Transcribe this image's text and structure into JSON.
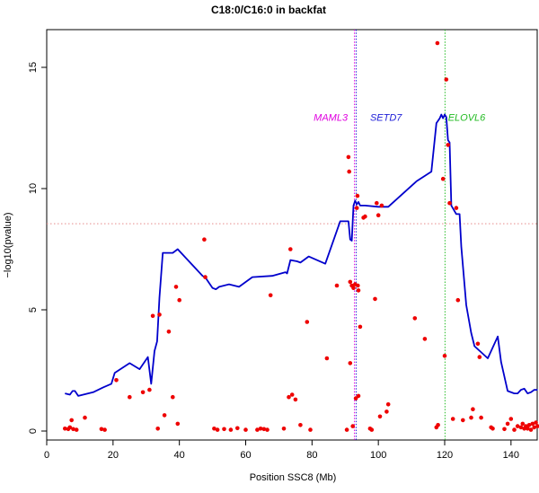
{
  "chart_data": {
    "type": "scatter",
    "title": "C18:0/C16:0 in backfat",
    "xlabel": "Position SSC8 (Mb)",
    "ylabel": "−log10(pvalue)",
    "xlim": [
      0,
      148
    ],
    "ylim": [
      0,
      16.5
    ],
    "x_ticks": [
      0,
      20,
      40,
      60,
      80,
      100,
      120,
      140
    ],
    "y_ticks": [
      0,
      5,
      10,
      15
    ],
    "grid": false,
    "threshold": {
      "y": 8.55,
      "color": "#e88a8a",
      "style": "dotted"
    },
    "genes": [
      {
        "name": "MAML3",
        "x": 92.8,
        "color": "#e000e0",
        "label_x": 80.5
      },
      {
        "name": "SETD7",
        "x": 93.3,
        "color": "#2020d8",
        "label_x": 97.5
      },
      {
        "name": "ELOVL6",
        "x": 120.1,
        "color": "#22bb22",
        "label_x": 121
      }
    ],
    "gene_label_y": 12.8,
    "series": [
      {
        "kind": "line",
        "color": "#0000cc",
        "points": [
          [
            5.5,
            1.55
          ],
          [
            7,
            1.5
          ],
          [
            7.8,
            1.65
          ],
          [
            8.5,
            1.65
          ],
          [
            9.5,
            1.45
          ],
          [
            11,
            1.5
          ],
          [
            14,
            1.6
          ],
          [
            17,
            1.8
          ],
          [
            19.5,
            1.95
          ],
          [
            20.5,
            2.4
          ],
          [
            25,
            2.8
          ],
          [
            28,
            2.55
          ],
          [
            30.5,
            3.05
          ],
          [
            31.5,
            1.95
          ],
          [
            32.5,
            3.3
          ],
          [
            33.3,
            3.7
          ],
          [
            34,
            5.5
          ],
          [
            35,
            7.35
          ],
          [
            38,
            7.35
          ],
          [
            39.5,
            7.5
          ],
          [
            47,
            6.4
          ],
          [
            48,
            6.3
          ],
          [
            50,
            5.9
          ],
          [
            51,
            5.85
          ],
          [
            52,
            5.95
          ],
          [
            55,
            6.05
          ],
          [
            58,
            5.95
          ],
          [
            62,
            6.35
          ],
          [
            68,
            6.4
          ],
          [
            72,
            6.55
          ],
          [
            72.5,
            6.5
          ],
          [
            73.5,
            7.05
          ],
          [
            75.5,
            7.0
          ],
          [
            76.5,
            6.95
          ],
          [
            79,
            7.2
          ],
          [
            84,
            6.9
          ],
          [
            88.5,
            8.65
          ],
          [
            91,
            8.65
          ],
          [
            91.5,
            7.9
          ],
          [
            92,
            7.85
          ],
          [
            92.5,
            9.3
          ],
          [
            93,
            9.5
          ],
          [
            93.5,
            9.35
          ],
          [
            94,
            9.45
          ],
          [
            94.5,
            9.3
          ],
          [
            96,
            9.3
          ],
          [
            100,
            9.25
          ],
          [
            103,
            9.25
          ],
          [
            111.5,
            10.3
          ],
          [
            116,
            10.7
          ],
          [
            117.5,
            12.7
          ],
          [
            118.5,
            12.9
          ],
          [
            119,
            13.05
          ],
          [
            119.5,
            12.9
          ],
          [
            120,
            13.05
          ],
          [
            120.5,
            12.95
          ],
          [
            121,
            12.0
          ],
          [
            121.5,
            11.9
          ],
          [
            122,
            9.3
          ],
          [
            123.5,
            8.95
          ],
          [
            124.5,
            8.95
          ],
          [
            125,
            7.6
          ],
          [
            126.5,
            5.2
          ],
          [
            128,
            4.05
          ],
          [
            129,
            3.5
          ],
          [
            133,
            3.0
          ],
          [
            136,
            3.9
          ],
          [
            137,
            2.85
          ],
          [
            139,
            1.65
          ],
          [
            141,
            1.55
          ],
          [
            142,
            1.55
          ],
          [
            143,
            1.7
          ],
          [
            144,
            1.75
          ],
          [
            145,
            1.55
          ],
          [
            146,
            1.6
          ],
          [
            147,
            1.7
          ],
          [
            148,
            1.7
          ]
        ]
      },
      {
        "kind": "points",
        "color": "#ee0000",
        "points": [
          [
            5.5,
            0.1
          ],
          [
            6.5,
            0.08
          ],
          [
            7,
            0.15
          ],
          [
            7.5,
            0.45
          ],
          [
            8,
            0.08
          ],
          [
            9,
            0.05
          ],
          [
            11.5,
            0.55
          ],
          [
            16.5,
            0.08
          ],
          [
            17.5,
            0.05
          ],
          [
            21,
            2.1
          ],
          [
            25,
            1.4
          ],
          [
            29,
            1.6
          ],
          [
            31,
            1.7
          ],
          [
            32,
            4.75
          ],
          [
            33.5,
            0.1
          ],
          [
            34,
            4.8
          ],
          [
            35.5,
            0.65
          ],
          [
            36.8,
            4.1
          ],
          [
            38,
            1.4
          ],
          [
            39,
            5.95
          ],
          [
            39.5,
            0.3
          ],
          [
            40,
            5.4
          ],
          [
            47.5,
            7.9
          ],
          [
            47.8,
            6.35
          ],
          [
            50.5,
            0.1
          ],
          [
            51.5,
            0.05
          ],
          [
            53.5,
            0.08
          ],
          [
            55.5,
            0.05
          ],
          [
            57.5,
            0.12
          ],
          [
            60,
            0.05
          ],
          [
            63.5,
            0.05
          ],
          [
            64.5,
            0.1
          ],
          [
            65.5,
            0.08
          ],
          [
            66.5,
            0.05
          ],
          [
            67.5,
            5.6
          ],
          [
            71.5,
            0.1
          ],
          [
            73,
            1.4
          ],
          [
            73.5,
            7.5
          ],
          [
            74,
            1.5
          ],
          [
            75,
            1.3
          ],
          [
            76.5,
            0.25
          ],
          [
            78.5,
            4.5
          ],
          [
            79.5,
            0.05
          ],
          [
            84.5,
            3.0
          ],
          [
            87.5,
            6.0
          ],
          [
            90.5,
            0.05
          ],
          [
            91,
            11.3
          ],
          [
            91.2,
            10.7
          ],
          [
            91.5,
            6.15
          ],
          [
            91.5,
            2.8
          ],
          [
            92,
            6.0
          ],
          [
            92.3,
            0.2
          ],
          [
            92.5,
            5.9
          ],
          [
            93,
            6.05
          ],
          [
            93.2,
            1.35
          ],
          [
            93.5,
            9.2
          ],
          [
            93.7,
            9.7
          ],
          [
            93.8,
            6.0
          ],
          [
            94,
            1.45
          ],
          [
            94,
            5.8
          ],
          [
            94.5,
            4.3
          ],
          [
            95.5,
            8.8
          ],
          [
            96,
            8.85
          ],
          [
            97.5,
            0.1
          ],
          [
            98,
            0.05
          ],
          [
            99,
            5.45
          ],
          [
            99.5,
            9.4
          ],
          [
            100,
            8.9
          ],
          [
            100.5,
            0.6
          ],
          [
            101,
            9.3
          ],
          [
            102.5,
            0.8
          ],
          [
            103,
            1.1
          ],
          [
            111,
            4.65
          ],
          [
            114,
            3.8
          ],
          [
            117.5,
            0.15
          ],
          [
            117.8,
            16.0
          ],
          [
            118,
            0.25
          ],
          [
            119.5,
            10.4
          ],
          [
            120,
            3.1
          ],
          [
            120.5,
            14.5
          ],
          [
            121,
            11.8
          ],
          [
            121.5,
            9.4
          ],
          [
            122.5,
            0.5
          ],
          [
            123.5,
            9.2
          ],
          [
            124,
            5.4
          ],
          [
            125.5,
            0.45
          ],
          [
            128,
            0.55
          ],
          [
            128.5,
            0.9
          ],
          [
            130,
            3.6
          ],
          [
            130.5,
            3.05
          ],
          [
            131,
            0.55
          ],
          [
            134,
            0.15
          ],
          [
            134.5,
            0.1
          ],
          [
            138,
            0.08
          ],
          [
            139,
            0.3
          ],
          [
            140,
            0.5
          ],
          [
            141,
            0.05
          ],
          [
            142,
            0.2
          ],
          [
            143,
            0.15
          ],
          [
            143.5,
            0.3
          ],
          [
            144,
            0.1
          ],
          [
            144.5,
            0.2
          ],
          [
            145,
            0.1
          ],
          [
            145.5,
            0.25
          ],
          [
            146,
            0.05
          ],
          [
            146.5,
            0.3
          ],
          [
            147,
            0.15
          ],
          [
            147.5,
            0.35
          ],
          [
            148,
            0.2
          ]
        ]
      }
    ]
  }
}
